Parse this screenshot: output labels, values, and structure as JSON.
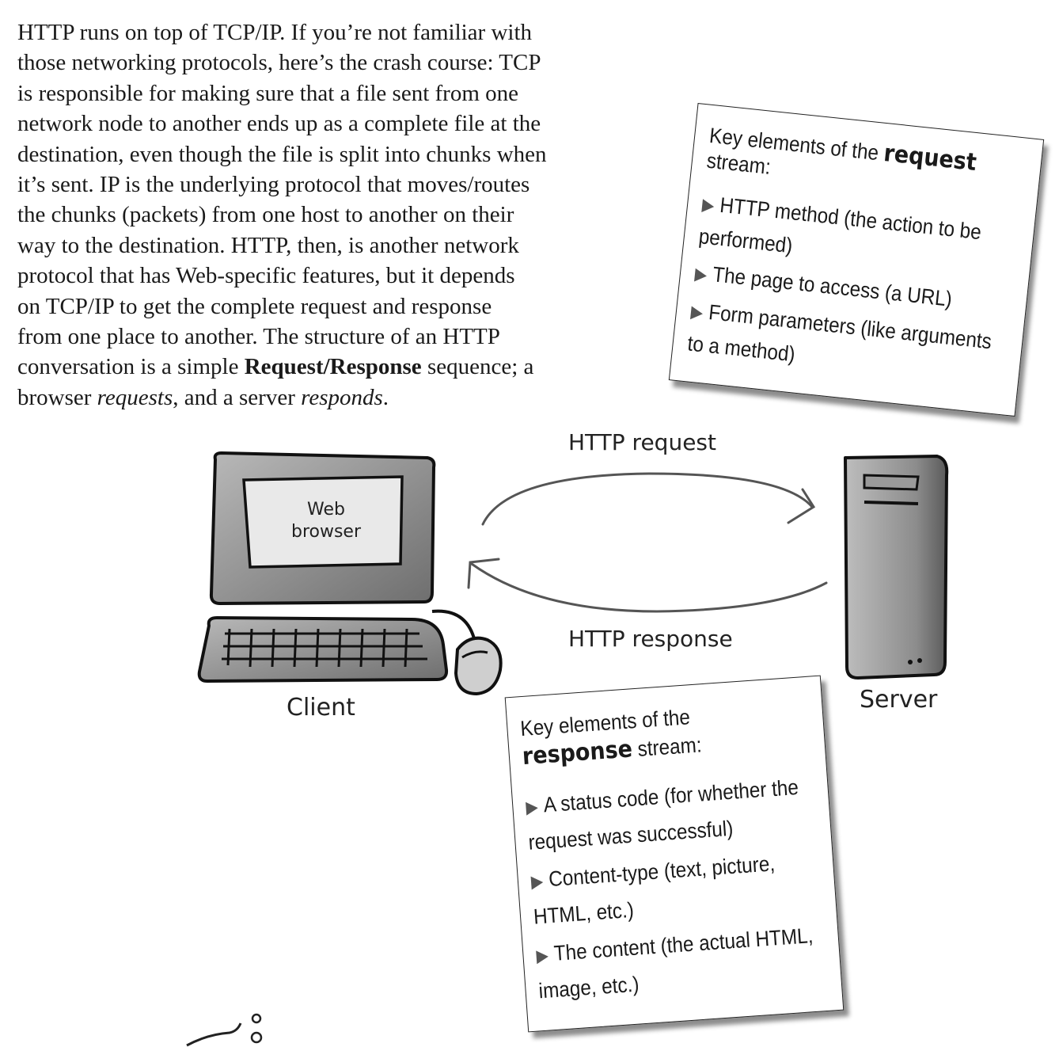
{
  "intro": {
    "l1": "HTTP runs on top of TCP/IP. If you’re not familiar with",
    "l2": "those networking protocols, here’s the crash course: TCP",
    "l3": "is responsible for making sure that a file sent from one",
    "l4": "network node to another ends up as a complete file at the",
    "l5": "destination, even though the file is split into chunks when",
    "l6": "it’s sent. IP is the underlying protocol that moves/routes",
    "l7": "the chunks (packets) from one host to another on their",
    "l8": "way to the destination. HTTP, then, is another network",
    "l9": "protocol that has Web-specific features, but it depends",
    "l10": "on TCP/IP to get the complete request and response",
    "l11": "from one place to another.  The structure of an HTTP",
    "l12a": "conversation is a simple ",
    "l12b": "Request/Response",
    "l12c": " sequence; a",
    "l13a": "browser ",
    "l13b": "requests",
    "l13c": ", and a server ",
    "l13d": "responds",
    "l13e": "."
  },
  "request_card": {
    "title_a": "Key elements of the ",
    "title_b": "request",
    "title_c": " stream:",
    "items": [
      "HTTP method (the action to be performed)",
      "The page to access (a URL)",
      "Form parameters (like arguments to a method)"
    ]
  },
  "response_card": {
    "title_a": "Key elements of the ",
    "title_b": "response",
    "title_c": " stream:",
    "items": [
      "A status code (for whether the request was successful)",
      "Content-type (text, picture, HTML, etc.)",
      "The content (the actual HTML, image, etc.)"
    ]
  },
  "diagram": {
    "request_label": "HTTP request",
    "response_label": "HTTP response",
    "screen_text": "Web browser",
    "client_label": "Client",
    "server_label": "Server"
  },
  "icons": {
    "bullet": "triangle-bullet",
    "computer": "desktop-computer-icon",
    "server": "server-tower-icon"
  }
}
